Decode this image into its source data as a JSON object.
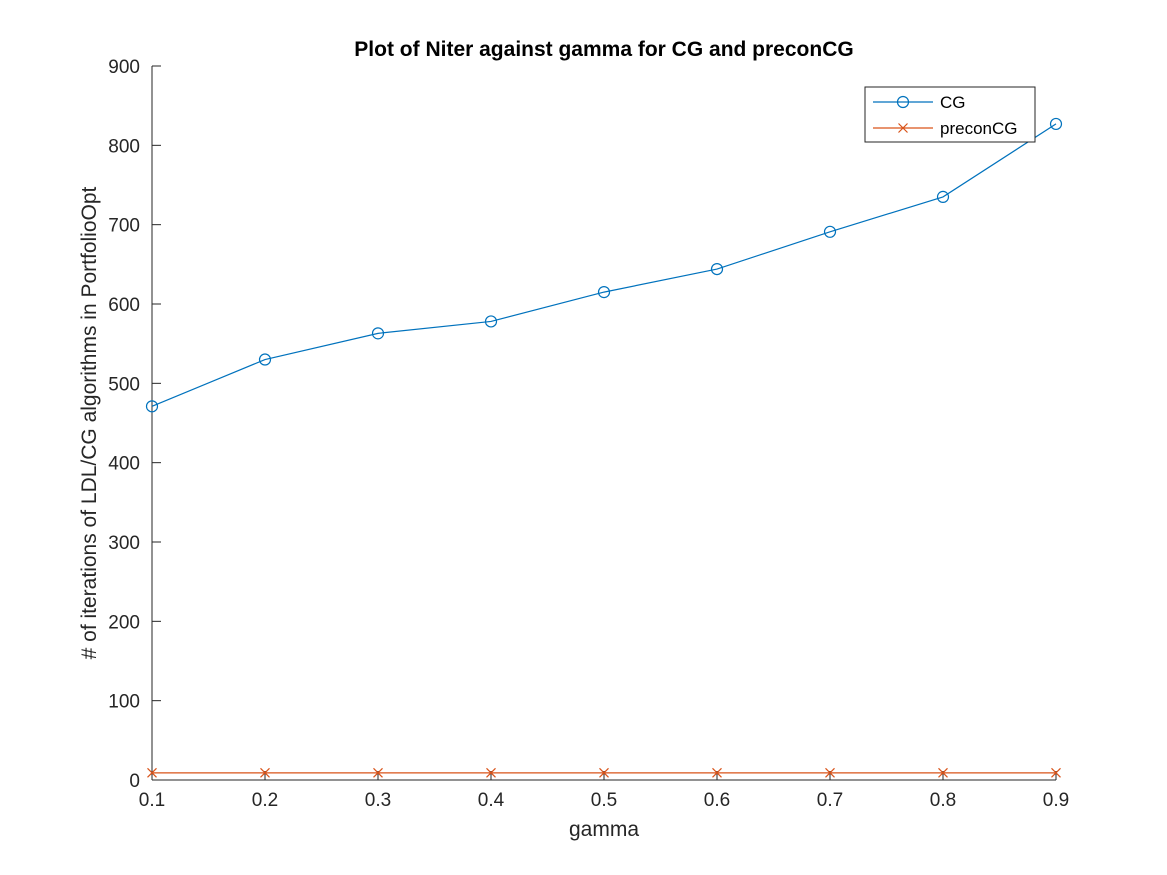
{
  "chart_data": {
    "type": "line",
    "title": "Plot of Niter against gamma for CG and preconCG",
    "xlabel": "gamma",
    "ylabel": "# of iterations of LDL/CG algorithms in PortfolioOpt",
    "x": [
      0.1,
      0.2,
      0.3,
      0.4,
      0.5,
      0.6,
      0.7,
      0.8,
      0.9
    ],
    "xlim": [
      0.1,
      0.9
    ],
    "ylim": [
      0,
      900
    ],
    "xticks": [
      "0.1",
      "0.2",
      "0.3",
      "0.4",
      "0.5",
      "0.6",
      "0.7",
      "0.8",
      "0.9"
    ],
    "yticks": [
      "0",
      "100",
      "200",
      "300",
      "400",
      "500",
      "600",
      "700",
      "800",
      "900"
    ],
    "grid": false,
    "legend_position": "top-right",
    "series": [
      {
        "name": "CG",
        "color": "#0072BD",
        "marker": "circle",
        "values": [
          471,
          530,
          563,
          578,
          615,
          644,
          691,
          735,
          827
        ]
      },
      {
        "name": "preconCG",
        "color": "#D95319",
        "marker": "x",
        "values": [
          9,
          9,
          9,
          9,
          9,
          9,
          9,
          9,
          9
        ]
      }
    ]
  }
}
